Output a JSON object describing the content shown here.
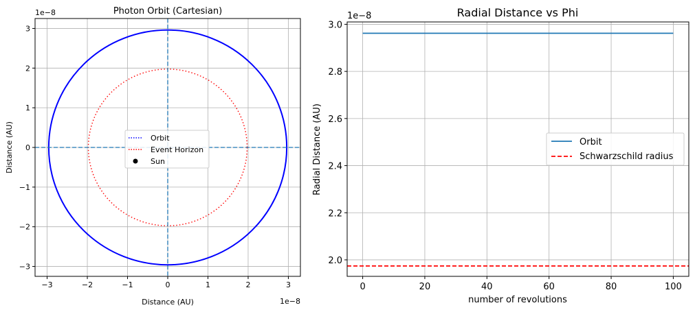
{
  "chart_data": [
    {
      "type": "line",
      "title": "Photon Orbit (Cartesian)",
      "xlabel": "Distance (AU)",
      "ylabel": "Distance (AU)",
      "x_offset_text": "1e−8",
      "y_offset_text": "1e−8",
      "xlim": [
        -3.3,
        3.3
      ],
      "ylim": [
        -3.25,
        3.25
      ],
      "xticks": [
        -3,
        -2,
        -1,
        0,
        1,
        2,
        3
      ],
      "xtick_labels": [
        "−3",
        "−2",
        "−1",
        "0",
        "1",
        "2",
        "3"
      ],
      "yticks": [
        -3,
        -2,
        -1,
        0,
        1,
        2,
        3
      ],
      "ytick_labels": [
        "−3",
        "−2",
        "−1",
        "0",
        "1",
        "2",
        "3"
      ],
      "grid": true,
      "legend_position": "center",
      "series": [
        {
          "name": "Orbit",
          "kind": "circle",
          "radius": 2.96,
          "style": "solid",
          "legend_style": "dotted",
          "color": "#0000ff"
        },
        {
          "name": "Event Horizon",
          "kind": "circle",
          "radius": 1.975,
          "style": "dotted",
          "color": "#ff0000"
        },
        {
          "name": "Sun",
          "kind": "point",
          "x": 0,
          "y": 0,
          "color": "#000000"
        }
      ],
      "axis_lines": {
        "x": 0,
        "y": 0,
        "style": "dashed",
        "color": "#1f77b4"
      }
    },
    {
      "type": "line",
      "title": "Radial Distance vs Phi",
      "xlabel": "number of revolutions",
      "ylabel": "Radial Distance (AU)",
      "y_offset_text": "1e−8",
      "xlim": [
        -5,
        105
      ],
      "ylim": [
        1.93,
        3.01
      ],
      "xticks": [
        0,
        20,
        40,
        60,
        80,
        100
      ],
      "xtick_labels": [
        "0",
        "20",
        "40",
        "60",
        "80",
        "100"
      ],
      "yticks": [
        2.0,
        2.2,
        2.4,
        2.6,
        2.8,
        3.0
      ],
      "ytick_labels": [
        "2.0",
        "2.2",
        "2.4",
        "2.6",
        "2.8",
        "3.0"
      ],
      "grid": true,
      "legend_position": "center-right",
      "series": [
        {
          "name": "Orbit",
          "x": [
            0,
            100
          ],
          "y": [
            2.962,
            2.962
          ],
          "style": "solid",
          "color": "#1f77b4"
        },
        {
          "name": "Schwarzschild radius",
          "y": 1.974,
          "kind": "hline",
          "style": "dashed",
          "color": "#ff0000"
        }
      ]
    }
  ]
}
